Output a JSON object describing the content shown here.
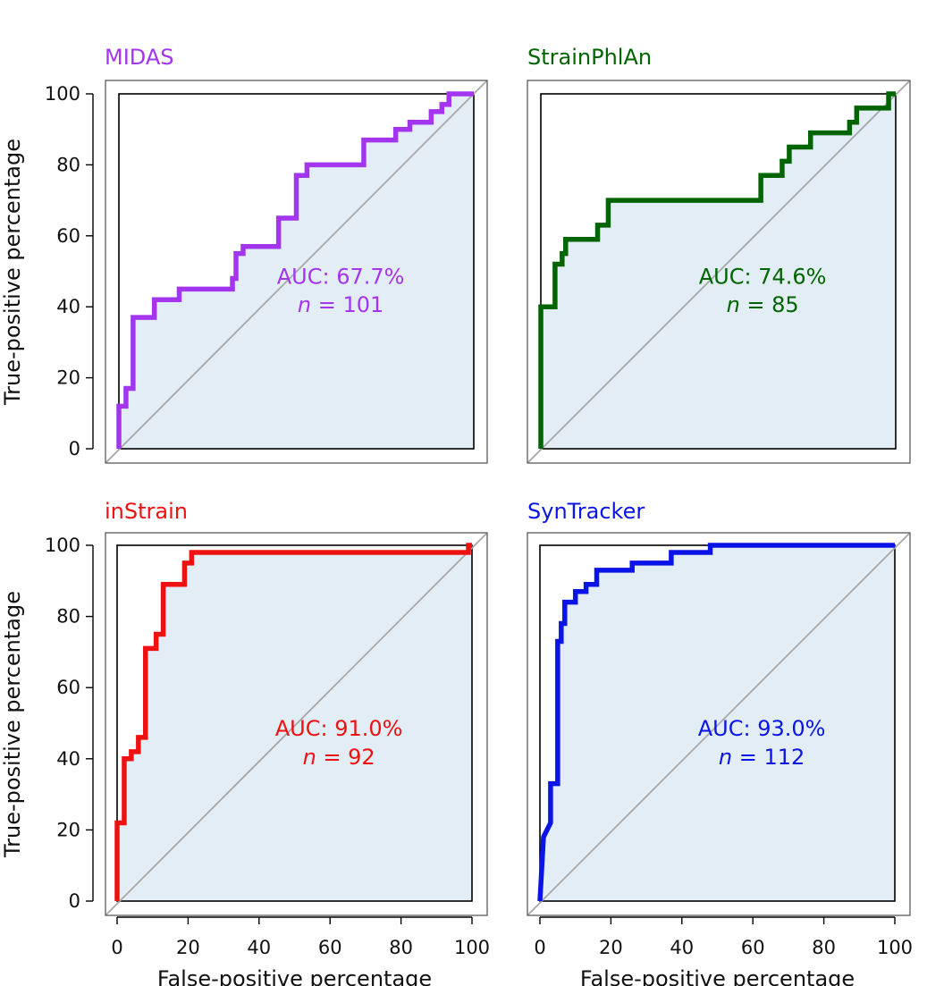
{
  "figure": {
    "ylabel": "True-positive percentage",
    "xlabel": "False-positive percentage"
  },
  "chart_data": [
    {
      "type": "line",
      "title": "MIDAS",
      "color": "#A335EE",
      "auc_label": "AUC: 67.7%",
      "n_prefix": "n",
      "n_suffix": " = 101",
      "xlim": [
        0,
        100
      ],
      "ylim": [
        0,
        100
      ],
      "xticks": [
        0,
        20,
        40,
        60,
        80,
        100
      ],
      "yticks": [
        0,
        20,
        40,
        60,
        80,
        100
      ],
      "show_xticks": false,
      "show_yticks": true,
      "show_xlabel": false,
      "show_ylabel": true,
      "roc": [
        [
          0,
          0
        ],
        [
          0,
          12
        ],
        [
          2,
          12
        ],
        [
          2,
          17
        ],
        [
          4,
          17
        ],
        [
          4,
          37
        ],
        [
          10,
          37
        ],
        [
          10,
          42
        ],
        [
          17,
          42
        ],
        [
          17,
          45
        ],
        [
          32,
          45
        ],
        [
          32,
          48
        ],
        [
          33,
          48
        ],
        [
          33,
          55
        ],
        [
          35,
          55
        ],
        [
          35,
          57
        ],
        [
          45,
          57
        ],
        [
          45,
          65
        ],
        [
          50,
          65
        ],
        [
          50,
          77
        ],
        [
          53,
          77
        ],
        [
          53,
          80
        ],
        [
          69,
          80
        ],
        [
          69,
          87
        ],
        [
          78,
          87
        ],
        [
          78,
          90
        ],
        [
          82,
          90
        ],
        [
          82,
          92
        ],
        [
          88,
          92
        ],
        [
          88,
          95
        ],
        [
          91,
          95
        ],
        [
          91,
          97
        ],
        [
          93,
          97
        ],
        [
          93,
          100
        ],
        [
          100,
          100
        ]
      ]
    },
    {
      "type": "line",
      "title": "StrainPhlAn",
      "color": "#006400",
      "auc_label": "AUC: 74.6%",
      "n_prefix": "n",
      "n_suffix": " = 85",
      "xlim": [
        0,
        100
      ],
      "ylim": [
        0,
        100
      ],
      "xticks": [
        0,
        20,
        40,
        60,
        80,
        100
      ],
      "yticks": [
        0,
        20,
        40,
        60,
        80,
        100
      ],
      "show_xticks": false,
      "show_yticks": false,
      "show_xlabel": false,
      "show_ylabel": false,
      "roc": [
        [
          0,
          0
        ],
        [
          0,
          40
        ],
        [
          4,
          40
        ],
        [
          4,
          52
        ],
        [
          6,
          52
        ],
        [
          6,
          55
        ],
        [
          7,
          55
        ],
        [
          7,
          59
        ],
        [
          16,
          59
        ],
        [
          16,
          63
        ],
        [
          19,
          63
        ],
        [
          19,
          70
        ],
        [
          62,
          70
        ],
        [
          62,
          77
        ],
        [
          68,
          77
        ],
        [
          68,
          81
        ],
        [
          70,
          81
        ],
        [
          70,
          85
        ],
        [
          76,
          85
        ],
        [
          76,
          89
        ],
        [
          87,
          89
        ],
        [
          87,
          92
        ],
        [
          89,
          92
        ],
        [
          89,
          96
        ],
        [
          98,
          96
        ],
        [
          98,
          100
        ],
        [
          100,
          100
        ]
      ]
    },
    {
      "type": "line",
      "title": "inStrain",
      "color": "#EE1111",
      "auc_label": "AUC: 91.0%",
      "n_prefix": "n",
      "n_suffix": " = 92",
      "xlim": [
        0,
        100
      ],
      "ylim": [
        0,
        100
      ],
      "xticks": [
        0,
        20,
        40,
        60,
        80,
        100
      ],
      "yticks": [
        0,
        20,
        40,
        60,
        80,
        100
      ],
      "show_xticks": true,
      "show_yticks": true,
      "show_xlabel": true,
      "show_ylabel": true,
      "roc": [
        [
          0,
          0
        ],
        [
          0,
          22
        ],
        [
          2,
          22
        ],
        [
          2,
          40
        ],
        [
          4,
          40
        ],
        [
          4,
          42
        ],
        [
          6,
          42
        ],
        [
          6,
          46
        ],
        [
          8,
          46
        ],
        [
          8,
          71
        ],
        [
          11,
          71
        ],
        [
          11,
          75
        ],
        [
          13,
          75
        ],
        [
          13,
          89
        ],
        [
          19,
          89
        ],
        [
          19,
          95
        ],
        [
          21,
          95
        ],
        [
          21,
          98
        ],
        [
          99,
          98
        ],
        [
          99,
          100
        ],
        [
          100,
          100
        ]
      ]
    },
    {
      "type": "line",
      "title": "SynTracker",
      "color": "#0A14E6",
      "auc_label": "AUC: 93.0%",
      "n_prefix": "n",
      "n_suffix": " = 112",
      "xlim": [
        0,
        100
      ],
      "ylim": [
        0,
        100
      ],
      "xticks": [
        0,
        20,
        40,
        60,
        80,
        100
      ],
      "yticks": [
        0,
        20,
        40,
        60,
        80,
        100
      ],
      "show_xticks": true,
      "show_yticks": false,
      "show_xlabel": true,
      "show_ylabel": false,
      "roc": [
        [
          0,
          0
        ],
        [
          1,
          18
        ],
        [
          3,
          22
        ],
        [
          3,
          33
        ],
        [
          5,
          33
        ],
        [
          5,
          73
        ],
        [
          6,
          73
        ],
        [
          6,
          78
        ],
        [
          7,
          78
        ],
        [
          7,
          84
        ],
        [
          10,
          84
        ],
        [
          10,
          87
        ],
        [
          13,
          87
        ],
        [
          13,
          89
        ],
        [
          16,
          89
        ],
        [
          16,
          93
        ],
        [
          26,
          93
        ],
        [
          26,
          95
        ],
        [
          37,
          95
        ],
        [
          37,
          98
        ],
        [
          48,
          98
        ],
        [
          48,
          100
        ],
        [
          100,
          100
        ]
      ]
    }
  ]
}
